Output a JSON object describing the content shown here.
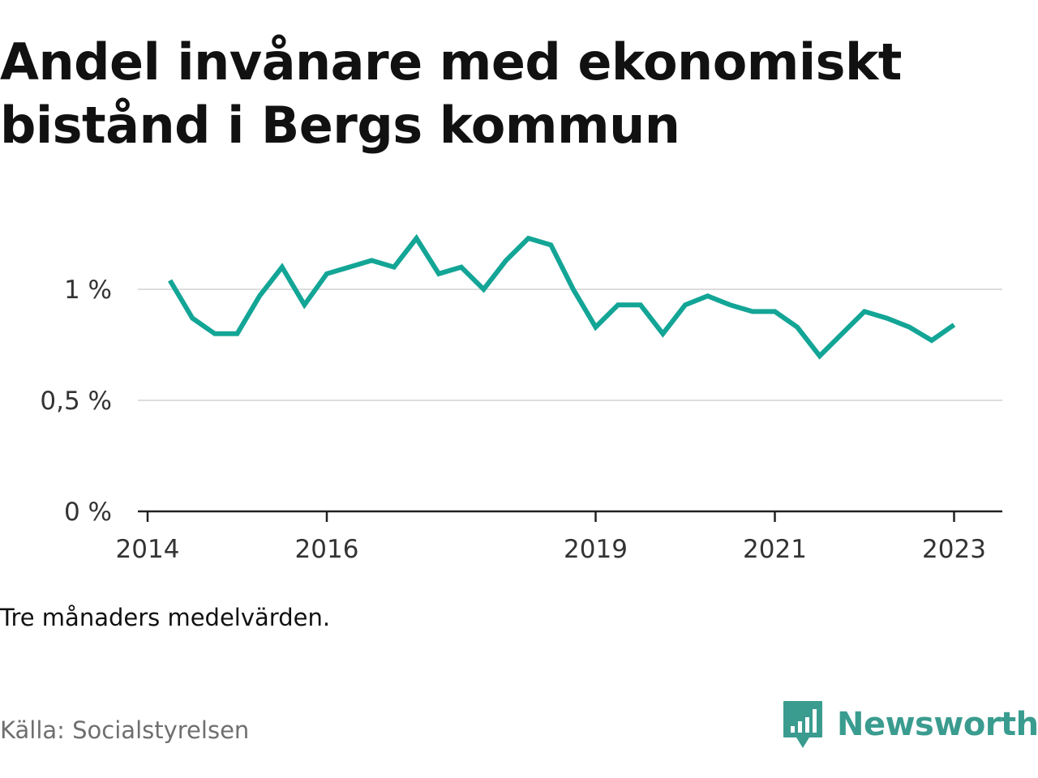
{
  "title": "Andel invånare med ekonomiskt bistånd i Bergs kommun",
  "note": "Tre månaders medelvärden.",
  "source": "Källa: Socialstyrelsen",
  "brand": {
    "name": "Newsworthy",
    "icon": "newsworthy-logo-icon",
    "color": "#3a9c8f"
  },
  "chart_data": {
    "type": "line",
    "x_ticks": [
      "2014",
      "2016",
      "2019",
      "2021",
      "2023"
    ],
    "y_ticks": [
      "0 %",
      "0,5 %",
      "1 %"
    ],
    "ylim": [
      0,
      1.3
    ],
    "grid": true,
    "line_color": "#13a596",
    "series": [
      {
        "x": [
          "2014-04",
          "2014-07",
          "2014-10",
          "2015-01",
          "2015-04",
          "2015-07",
          "2015-10",
          "2016-01",
          "2016-04",
          "2016-07",
          "2016-10",
          "2017-01",
          "2017-04",
          "2017-07",
          "2017-10",
          "2018-01",
          "2018-04",
          "2018-07",
          "2018-10",
          "2019-01",
          "2019-04",
          "2019-07",
          "2019-10",
          "2020-01",
          "2020-04",
          "2020-07",
          "2020-10",
          "2021-01",
          "2021-04",
          "2021-07",
          "2021-10",
          "2022-01",
          "2022-04",
          "2022-07",
          "2022-10",
          "2023-01"
        ],
        "values": [
          1.04,
          0.87,
          0.8,
          0.8,
          0.97,
          1.1,
          0.93,
          1.07,
          1.1,
          1.13,
          1.1,
          1.23,
          1.07,
          1.1,
          1.0,
          1.13,
          1.23,
          1.2,
          1.0,
          0.83,
          0.93,
          0.93,
          0.8,
          0.93,
          0.97,
          0.93,
          0.9,
          0.9,
          0.83,
          0.7,
          0.8,
          0.9,
          0.87,
          0.83,
          0.77,
          0.84
        ]
      }
    ]
  }
}
